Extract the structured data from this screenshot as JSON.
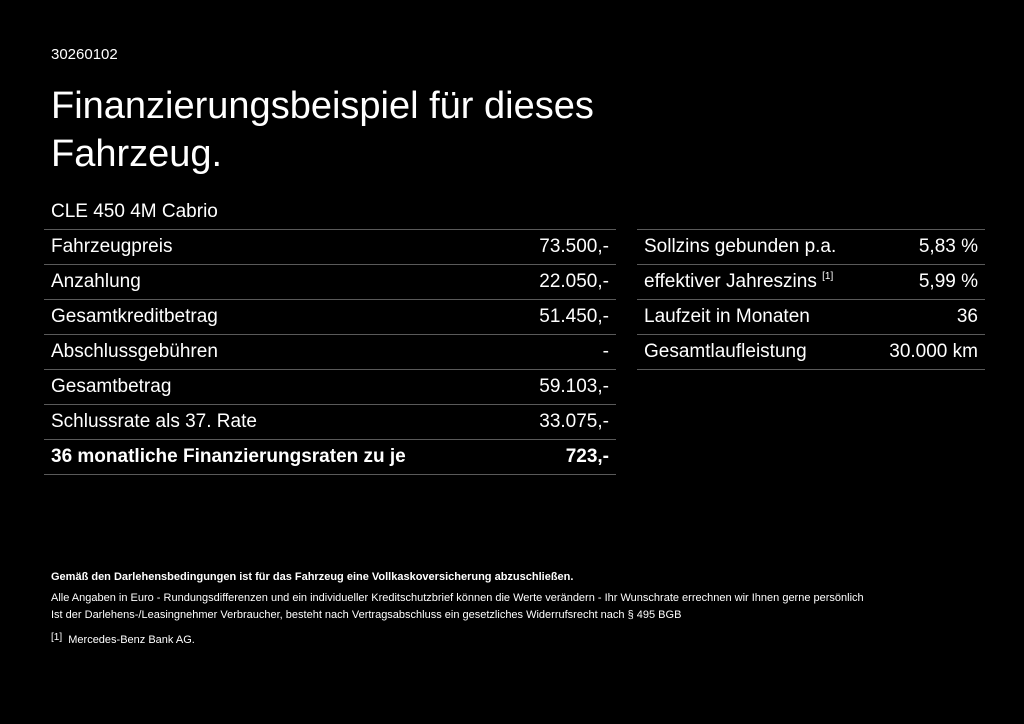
{
  "header": {
    "code": "30260102",
    "title": "Finanzierungsbeispiel für dieses Fahrzeug.",
    "model": "CLE 450 4M Cabrio"
  },
  "left_table": {
    "rows": [
      [
        "Fahrzeugpreis",
        "73.500,-"
      ],
      [
        "Anzahlung",
        "22.050,-"
      ],
      [
        "Gesamtkreditbetrag",
        "51.450,-"
      ],
      [
        "Abschlussgebühren",
        "-"
      ],
      [
        "Gesamtbetrag",
        "59.103,-"
      ],
      [
        "Schlussrate als 37. Rate",
        "33.075,-"
      ],
      [
        "36 monatliche Finanzierungsraten zu je",
        "723,-"
      ]
    ]
  },
  "right_table": {
    "rows": [
      [
        "Sollzins gebunden p.a.",
        "5,83 %"
      ],
      [
        "effektiver Jahreszins",
        "5,99 %"
      ],
      [
        "Laufzeit in Monaten",
        "36"
      ],
      [
        "Gesamtlaufleistung",
        "30.000 km"
      ]
    ],
    "footnote_marker": "[1]"
  },
  "footer": {
    "bold_note": "Gemäß den Darlehensbedingungen ist für das Fahrzeug eine Vollkaskoversicherung abzuschließen.",
    "notes": [
      "Alle Angaben in Euro - Rundungsdifferenzen und ein individueller Kreditschutzbrief können die Werte verändern - Ihr Wunschrate errechnen wir Ihnen gerne persönlich",
      "Ist der Darlehens-/Leasingnehmer Verbraucher, besteht nach Vertragsabschluss ein gesetzliches Widerrufsrecht nach § 495 BGB"
    ],
    "footnote_marker": "[1]",
    "footnote_text": "Mercedes-Benz Bank AG."
  }
}
